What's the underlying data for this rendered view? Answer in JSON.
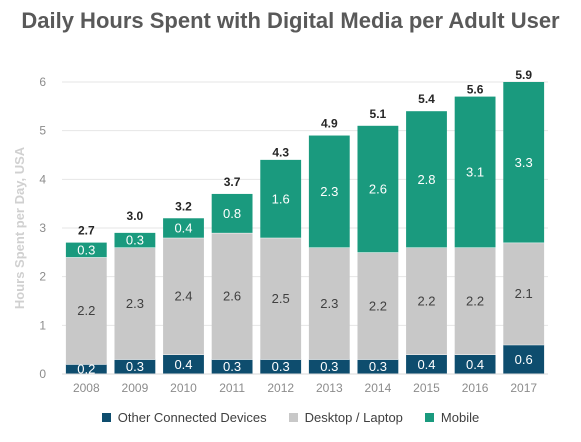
{
  "chart_data": {
    "type": "bar",
    "stacked": true,
    "title": "Daily Hours Spent with Digital Media per Adult User",
    "ylabel": "Hours Spent per Day, USA",
    "xlabel": "",
    "ylim": [
      0,
      6
    ],
    "yticks": [
      "0",
      "1",
      "2",
      "3",
      "4",
      "5",
      "6"
    ],
    "grid": true,
    "legend_position": "bottom",
    "categories": [
      "2008",
      "2009",
      "2010",
      "2011",
      "2012",
      "2013",
      "2014",
      "2015",
      "2016",
      "2017"
    ],
    "series": [
      {
        "name": "Other Connected Devices",
        "color": "#0e4d6e",
        "labelColor": "#ffffff",
        "values": [
          0.2,
          0.3,
          0.4,
          0.3,
          0.3,
          0.3,
          0.3,
          0.4,
          0.4,
          0.6
        ],
        "labels": [
          "0.2",
          "0.3",
          "0.4",
          "0.3",
          "0.3",
          "0.3",
          "0.3",
          "0.4",
          "0.4",
          "0.6"
        ]
      },
      {
        "name": "Desktop / Laptop",
        "color": "#c8c8c8",
        "labelColor": "#404040",
        "values": [
          2.2,
          2.3,
          2.4,
          2.6,
          2.5,
          2.3,
          2.2,
          2.2,
          2.2,
          2.1
        ],
        "labels": [
          "2.2",
          "2.3",
          "2.4",
          "2.6",
          "2.5",
          "2.3",
          "2.2",
          "2.2",
          "2.2",
          "2.1"
        ]
      },
      {
        "name": "Mobile",
        "color": "#1a9a7e",
        "labelColor": "#ffffff",
        "values": [
          0.3,
          0.3,
          0.4,
          0.8,
          1.6,
          2.3,
          2.6,
          2.8,
          3.1,
          3.3
        ],
        "labels": [
          "0.3",
          "0.3",
          "0.4",
          "0.8",
          "1.6",
          "2.3",
          "2.6",
          "2.8",
          "3.1",
          "3.3"
        ]
      }
    ],
    "totals": [
      2.7,
      3.0,
      3.2,
      3.7,
      4.3,
      4.9,
      5.1,
      5.4,
      5.6,
      5.9
    ],
    "total_labels": [
      "2.7",
      "3.0",
      "3.2",
      "3.7",
      "4.3",
      "4.9",
      "5.1",
      "5.4",
      "5.6",
      "5.9"
    ]
  }
}
